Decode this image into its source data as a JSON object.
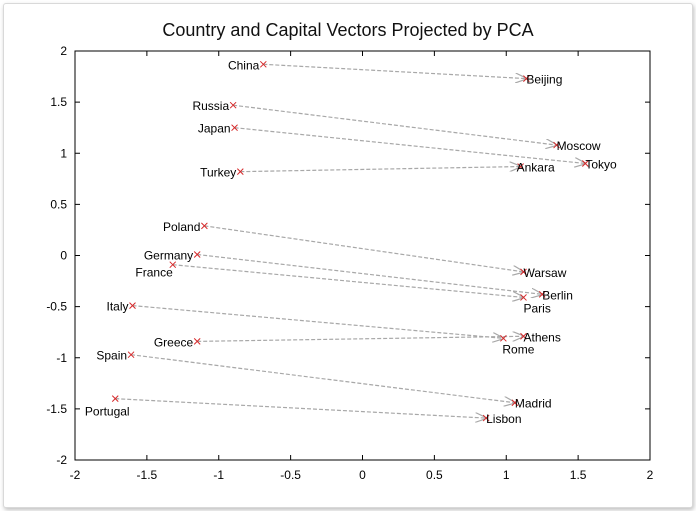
{
  "chart_data": {
    "type": "scatter",
    "title": "Country and Capital Vectors Projected by PCA",
    "xlabel": "",
    "ylabel": "",
    "xlim": [
      -2,
      2
    ],
    "ylim": [
      -2,
      2
    ],
    "xticks": [
      "-2",
      "-1.5",
      "-1",
      "-0.5",
      "0",
      "0.5",
      "1",
      "1.5",
      "2"
    ],
    "yticks": [
      "2",
      "1.5",
      "1",
      "0.5",
      "0",
      "-0.5",
      "-1",
      "-1.5",
      "-2"
    ],
    "grid": false,
    "colors": {
      "marker": "#d62728",
      "arrow": "#a8a8a8",
      "axis": "#000000"
    },
    "pairs": [
      {
        "country": "China",
        "cx": -0.69,
        "cy": 1.87,
        "capital": "Beijing",
        "kx": 1.14,
        "ky": 1.73
      },
      {
        "country": "Russia",
        "cx": -0.9,
        "cy": 1.47,
        "capital": "Moscow",
        "kx": 1.35,
        "ky": 1.08
      },
      {
        "country": "Japan",
        "cx": -0.89,
        "cy": 1.25,
        "capital": "Tokyo",
        "kx": 1.55,
        "ky": 0.9
      },
      {
        "country": "Turkey",
        "cx": -0.85,
        "cy": 0.82,
        "capital": "Ankara",
        "kx": 1.1,
        "ky": 0.87
      },
      {
        "country": "Poland",
        "cx": -1.1,
        "cy": 0.29,
        "capital": "Warsaw",
        "kx": 1.12,
        "ky": -0.16
      },
      {
        "country": "Germany",
        "cx": -1.15,
        "cy": 0.01,
        "capital": "Berlin",
        "kx": 1.25,
        "ky": -0.38
      },
      {
        "country": "France",
        "cx": -1.32,
        "cy": -0.09,
        "capital": "Paris",
        "kx": 1.12,
        "ky": -0.41
      },
      {
        "country": "Italy",
        "cx": -1.6,
        "cy": -0.49,
        "capital": "Rome",
        "kx": 0.98,
        "ky": -0.81
      },
      {
        "country": "Greece",
        "cx": -1.15,
        "cy": -0.84,
        "capital": "Athens",
        "kx": 1.12,
        "ky": -0.79
      },
      {
        "country": "Spain",
        "cx": -1.61,
        "cy": -0.97,
        "capital": "Madrid",
        "kx": 1.06,
        "ky": -1.44
      },
      {
        "country": "Portugal",
        "cx": -1.72,
        "cy": -1.4,
        "capital": "Lisbon",
        "kx": 0.86,
        "ky": -1.59
      }
    ]
  }
}
